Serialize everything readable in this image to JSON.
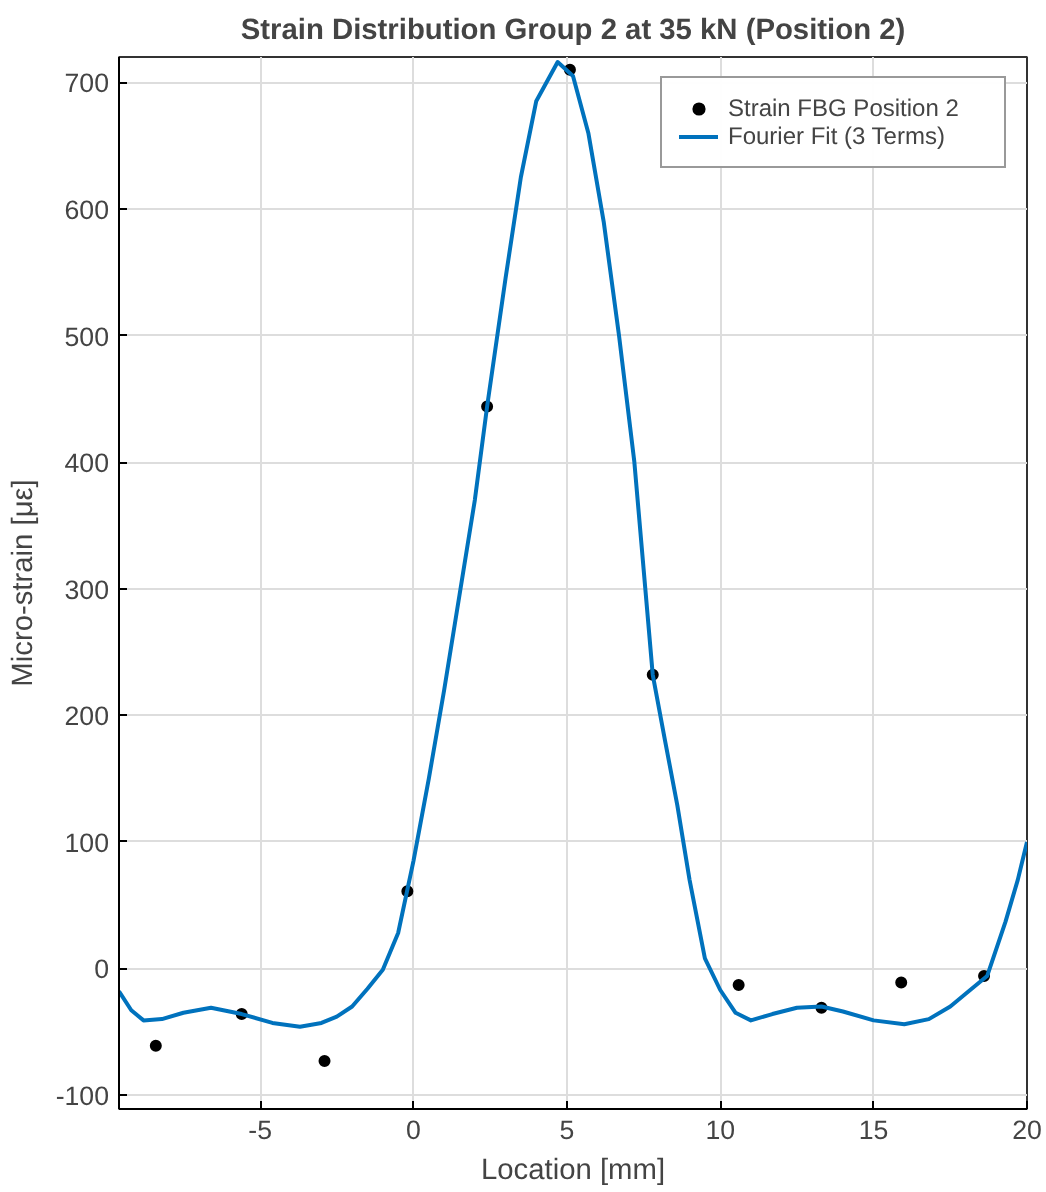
{
  "chart_data": {
    "type": "scatter",
    "title": "Strain Distribution Group 2 at 35 kN (Position 2)",
    "xlabel": "Location [mm]",
    "ylabel": "Micro-strain [με]",
    "xlim": [
      -9.6,
      20
    ],
    "xticks": [
      -5,
      0,
      5,
      10,
      15,
      20
    ],
    "ylim": [
      -111,
      720
    ],
    "yticks": [
      -100,
      0,
      100,
      200,
      300,
      400,
      500,
      600,
      700
    ],
    "grid": true,
    "legend": "top right",
    "series": [
      {
        "name": "Strain FBG Position 2",
        "marker": "circle",
        "color": "#000000",
        "x": [
          -8.4,
          -5.6,
          -2.9,
          -0.2,
          2.4,
          5.1,
          7.8,
          10.6,
          13.3,
          15.9,
          18.6
        ],
        "values": [
          -61,
          -36,
          -73,
          61,
          444,
          710,
          232,
          -13,
          -31,
          -11,
          -6
        ]
      },
      {
        "name": "Fourier Fit (3 Terms)",
        "type": "line",
        "line_style": "solid",
        "color": "#0072bd",
        "x": [
          -9.6,
          -9.2,
          -8.8,
          -8.2,
          -7.5,
          -6.6,
          -5.6,
          -4.6,
          -3.7,
          -3,
          -2.5,
          -2,
          -1.5,
          -1,
          -0.5,
          0,
          0.5,
          1,
          1.5,
          2,
          2.4,
          3,
          3.5,
          4,
          4.7,
          5.2,
          5.7,
          6.2,
          6.7,
          7.2,
          7.8,
          8.2,
          8.6,
          9,
          9.5,
          10,
          10.5,
          11,
          11.7,
          12.5,
          13.3,
          14,
          15,
          16,
          16.8,
          17.5,
          18,
          18.7,
          19.3,
          19.7,
          20
        ],
        "values": [
          -18,
          -33,
          -41,
          -40,
          -35,
          -31,
          -36,
          -43,
          -46,
          -43,
          -38,
          -30,
          -16,
          -1,
          28,
          85,
          150,
          220,
          295,
          370,
          444,
          545,
          625,
          685,
          716,
          705,
          660,
          590,
          500,
          400,
          232,
          180,
          129,
          70,
          8,
          -17,
          -35,
          -41,
          -36,
          -31,
          -30,
          -34,
          -41,
          -44,
          -40,
          -30,
          -20,
          -6,
          37,
          70,
          100
        ]
      }
    ]
  }
}
